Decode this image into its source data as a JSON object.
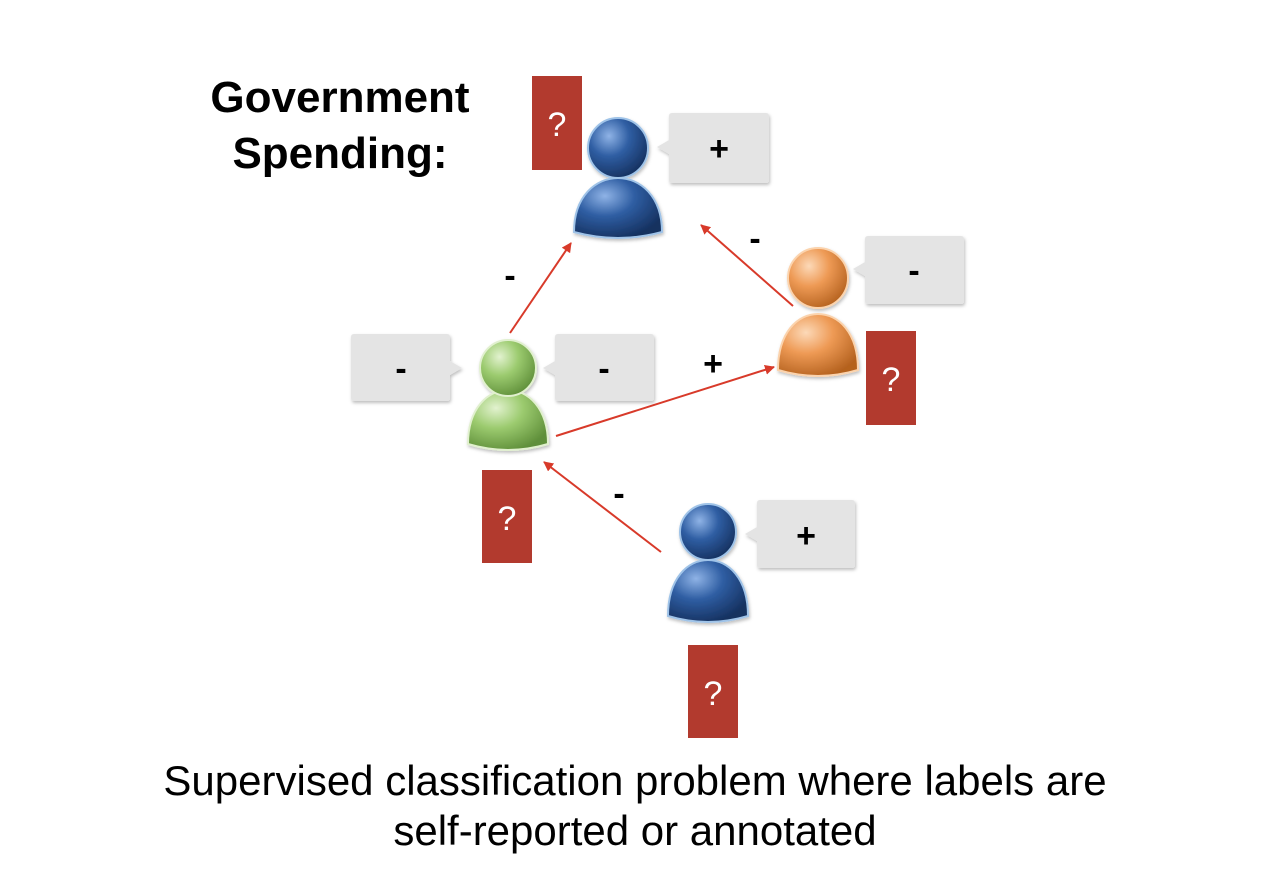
{
  "title": "Government\nSpending:",
  "caption": {
    "line1": "Supervised classification problem where labels are",
    "line2": "self-reported or annotated"
  },
  "colors": {
    "blue_person": "#2f5ea3",
    "green_person": "#8fbf63",
    "orange_person": "#e8924a",
    "label_box": "#b23a2e",
    "bubble": "#e4e4e4",
    "arrow": "#d83a2a"
  },
  "persons": [
    {
      "name": "person-top",
      "color": "blue",
      "bubble": "+",
      "label": "?"
    },
    {
      "name": "person-right",
      "color": "orange",
      "bubble": "-",
      "label": "?"
    },
    {
      "name": "person-middle",
      "color": "green",
      "bubbles": [
        "-",
        "-"
      ],
      "label": "?"
    },
    {
      "name": "person-bottom",
      "color": "blue",
      "bubble": "+",
      "label": "?"
    }
  ],
  "edges": [
    {
      "from": "person-middle",
      "to": "person-top",
      "sign": "-"
    },
    {
      "from": "person-right",
      "to": "person-top",
      "sign": "-"
    },
    {
      "from": "person-middle",
      "to": "person-right",
      "sign": "+"
    },
    {
      "from": "person-bottom",
      "to": "person-middle",
      "sign": "-"
    }
  ]
}
